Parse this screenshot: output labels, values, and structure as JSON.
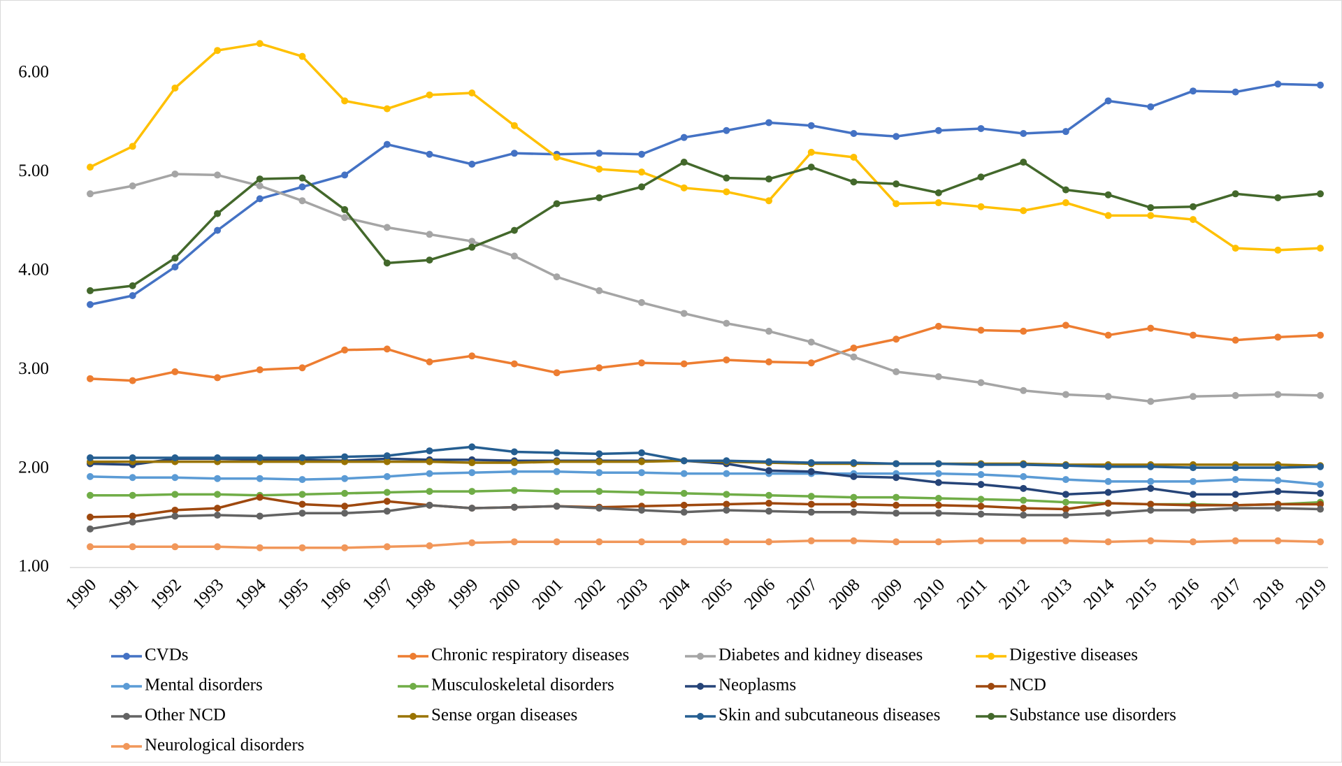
{
  "chart_data": {
    "type": "line",
    "categories": [
      "1990",
      "1991",
      "1992",
      "1993",
      "1994",
      "1995",
      "1996",
      "1997",
      "1998",
      "1999",
      "2000",
      "2001",
      "2002",
      "2003",
      "2004",
      "2005",
      "2006",
      "2007",
      "2008",
      "2009",
      "2010",
      "2011",
      "2012",
      "2013",
      "2014",
      "2015",
      "2016",
      "2017",
      "2018",
      "2019"
    ],
    "ylim": [
      1,
      6.5
    ],
    "yticks": [
      {
        "value": 1,
        "label": "1.00"
      },
      {
        "value": 2,
        "label": "2.00"
      },
      {
        "value": 3,
        "label": "3.00"
      },
      {
        "value": 4,
        "label": "4.00"
      },
      {
        "value": 5,
        "label": "5.00"
      },
      {
        "value": 6,
        "label": "6.00"
      }
    ],
    "grid": false,
    "legend": "bottom",
    "series": [
      {
        "name": "CVDs",
        "color": "#4472c4",
        "values": [
          3.66,
          3.75,
          4.04,
          4.41,
          4.73,
          4.85,
          4.97,
          5.28,
          5.18,
          5.08,
          5.19,
          5.18,
          5.19,
          5.18,
          5.35,
          5.42,
          5.5,
          5.47,
          5.39,
          5.36,
          5.42,
          5.44,
          5.39,
          5.41,
          5.72,
          5.66,
          5.82,
          5.81,
          5.89,
          5.88
        ]
      },
      {
        "name": "Chronic respiratory diseases",
        "color": "#ed7d31",
        "values": [
          2.91,
          2.89,
          2.98,
          2.92,
          3.0,
          3.02,
          3.2,
          3.21,
          3.08,
          3.14,
          3.06,
          2.97,
          3.02,
          3.07,
          3.06,
          3.1,
          3.08,
          3.07,
          3.22,
          3.31,
          3.44,
          3.4,
          3.39,
          3.45,
          3.35,
          3.42,
          3.35,
          3.3,
          3.33,
          3.35
        ]
      },
      {
        "name": "Diabetes and kidney diseases",
        "color": "#a5a5a5",
        "values": [
          4.78,
          4.86,
          4.98,
          4.97,
          4.86,
          4.71,
          4.54,
          4.44,
          4.37,
          4.3,
          4.15,
          3.94,
          3.8,
          3.68,
          3.57,
          3.47,
          3.39,
          3.28,
          3.13,
          2.98,
          2.93,
          2.87,
          2.79,
          2.75,
          2.73,
          2.68,
          2.73,
          2.74,
          2.75,
          2.74
        ]
      },
      {
        "name": "Digestive diseases",
        "color": "#ffc000",
        "values": [
          5.05,
          5.26,
          5.85,
          6.23,
          6.3,
          6.17,
          5.72,
          5.64,
          5.78,
          5.8,
          5.47,
          5.15,
          5.03,
          5.0,
          4.84,
          4.8,
          4.71,
          5.2,
          5.15,
          4.68,
          4.69,
          4.65,
          4.61,
          4.69,
          4.56,
          4.56,
          4.52,
          4.23,
          4.21,
          4.23
        ]
      },
      {
        "name": "Mental disorders",
        "color": "#5b9bd5",
        "values": [
          1.92,
          1.91,
          1.91,
          1.9,
          1.9,
          1.89,
          1.9,
          1.92,
          1.95,
          1.96,
          1.97,
          1.97,
          1.96,
          1.96,
          1.95,
          1.95,
          1.95,
          1.95,
          1.95,
          1.95,
          1.95,
          1.94,
          1.92,
          1.89,
          1.87,
          1.87,
          1.87,
          1.89,
          1.88,
          1.84
        ]
      },
      {
        "name": "Musculoskeletal disorders",
        "color": "#70ad47",
        "values": [
          1.73,
          1.73,
          1.74,
          1.74,
          1.73,
          1.74,
          1.75,
          1.76,
          1.77,
          1.77,
          1.78,
          1.77,
          1.77,
          1.76,
          1.75,
          1.74,
          1.73,
          1.72,
          1.71,
          1.71,
          1.7,
          1.69,
          1.68,
          1.66,
          1.65,
          1.64,
          1.64,
          1.63,
          1.64,
          1.66
        ]
      },
      {
        "name": "Neoplasms",
        "color": "#264478",
        "values": [
          2.05,
          2.04,
          2.1,
          2.1,
          2.09,
          2.09,
          2.08,
          2.1,
          2.09,
          2.09,
          2.08,
          2.08,
          2.08,
          2.08,
          2.08,
          2.05,
          1.98,
          1.97,
          1.92,
          1.91,
          1.86,
          1.84,
          1.8,
          1.74,
          1.76,
          1.8,
          1.74,
          1.74,
          1.77,
          1.75
        ]
      },
      {
        "name": "NCD",
        "color": "#9e480e",
        "values": [
          1.51,
          1.52,
          1.58,
          1.6,
          1.71,
          1.64,
          1.62,
          1.67,
          1.63,
          1.6,
          1.61,
          1.62,
          1.61,
          1.62,
          1.63,
          1.64,
          1.65,
          1.64,
          1.64,
          1.63,
          1.63,
          1.62,
          1.6,
          1.59,
          1.65,
          1.64,
          1.63,
          1.63,
          1.64,
          1.64
        ]
      },
      {
        "name": "Other NCD",
        "color": "#636363",
        "values": [
          1.39,
          1.46,
          1.52,
          1.53,
          1.52,
          1.55,
          1.55,
          1.57,
          1.63,
          1.6,
          1.61,
          1.62,
          1.6,
          1.58,
          1.56,
          1.58,
          1.57,
          1.56,
          1.56,
          1.55,
          1.55,
          1.54,
          1.53,
          1.53,
          1.55,
          1.58,
          1.58,
          1.6,
          1.6,
          1.59
        ]
      },
      {
        "name": "Sense organ diseases",
        "color": "#997300",
        "values": [
          2.07,
          2.07,
          2.07,
          2.07,
          2.07,
          2.07,
          2.07,
          2.07,
          2.07,
          2.06,
          2.06,
          2.07,
          2.07,
          2.07,
          2.08,
          2.07,
          2.06,
          2.05,
          2.05,
          2.05,
          2.05,
          2.05,
          2.05,
          2.04,
          2.04,
          2.04,
          2.04,
          2.04,
          2.04,
          2.03
        ]
      },
      {
        "name": "Skin and subcutaneous diseases",
        "color": "#255e91",
        "values": [
          2.11,
          2.11,
          2.11,
          2.11,
          2.11,
          2.11,
          2.12,
          2.13,
          2.18,
          2.22,
          2.17,
          2.16,
          2.15,
          2.16,
          2.08,
          2.08,
          2.07,
          2.06,
          2.06,
          2.05,
          2.05,
          2.04,
          2.04,
          2.03,
          2.02,
          2.02,
          2.01,
          2.01,
          2.01,
          2.02
        ]
      },
      {
        "name": "Substance use disorders",
        "color": "#43682b",
        "values": [
          3.8,
          3.85,
          4.13,
          4.58,
          4.93,
          4.94,
          4.62,
          4.08,
          4.11,
          4.24,
          4.41,
          4.68,
          4.74,
          4.85,
          5.1,
          4.94,
          4.93,
          5.05,
          4.9,
          4.88,
          4.79,
          4.95,
          5.1,
          4.82,
          4.77,
          4.64,
          4.65,
          4.78,
          4.74,
          4.78
        ]
      },
      {
        "name": "Neurological disorders",
        "color": "#f1975a",
        "values": [
          1.21,
          1.21,
          1.21,
          1.21,
          1.2,
          1.2,
          1.2,
          1.21,
          1.22,
          1.25,
          1.26,
          1.26,
          1.26,
          1.26,
          1.26,
          1.26,
          1.26,
          1.27,
          1.27,
          1.26,
          1.26,
          1.27,
          1.27,
          1.27,
          1.26,
          1.27,
          1.26,
          1.27,
          1.27,
          1.26
        ]
      }
    ]
  }
}
